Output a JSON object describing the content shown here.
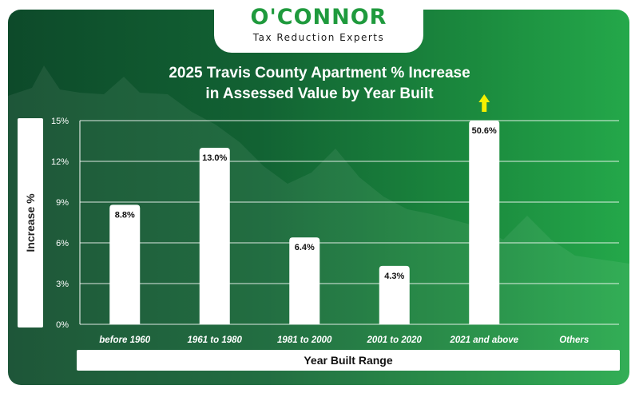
{
  "brand": {
    "name": "O'CONNOR",
    "tagline": "Tax Reduction Experts"
  },
  "colors": {
    "bar": "#ffffff",
    "grid": "#ffffff",
    "arrow": "#f5f000",
    "brand_green": "#1f9a3d"
  },
  "chart_data": {
    "type": "bar",
    "title_line1": "2025 Travis County Apartment % Increase",
    "title_line2": "in Assessed Value by Year Built",
    "xlabel": "Year Built Range",
    "ylabel": "Increase %",
    "categories": [
      "before 1960",
      "1961 to 1980",
      "1981 to 2000",
      "2001 to 2020",
      "2021 and above",
      "Others"
    ],
    "values": [
      8.8,
      13.0,
      6.4,
      4.3,
      50.6,
      null
    ],
    "data_labels": [
      "8.8%",
      "13.0%",
      "6.4%",
      "4.3%",
      "50.6%",
      ""
    ],
    "ylim": [
      0,
      15
    ],
    "yticks": [
      0,
      3,
      6,
      9,
      12,
      15
    ],
    "ytick_labels": [
      "0%",
      "3%",
      "6%",
      "9%",
      "12%",
      "15%"
    ],
    "clipped_bar_indicator": "up-arrow on 2021 and above",
    "grid": true
  }
}
